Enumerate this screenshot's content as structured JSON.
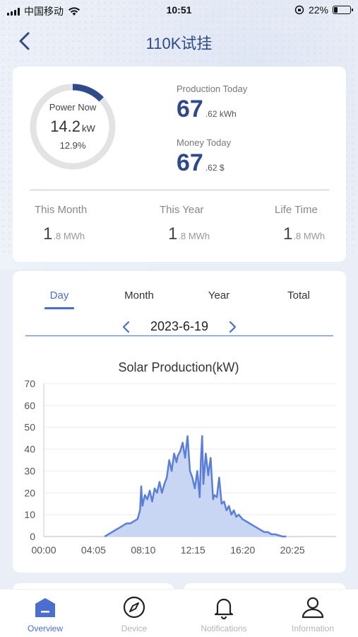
{
  "status_bar": {
    "carrier": "中国移动",
    "time": "10:51",
    "battery_pct": "22%",
    "battery_level": 0.22
  },
  "nav": {
    "title": "110K试挂"
  },
  "summary": {
    "power_now_label": "Power Now",
    "power_now_value": "14.2",
    "power_now_unit": "kW",
    "power_now_pct": "12.9%",
    "power_ring_fraction": 0.129,
    "production_today_label": "Production Today",
    "production_today_int": "67",
    "production_today_dec": ".62 kWh",
    "money_today_label": "Money Today",
    "money_today_int": "67",
    "money_today_dec": ".62 $",
    "this_month_label": "This Month",
    "this_month_int": "1",
    "this_month_dec": ".8 MWh",
    "this_year_label": "This Year",
    "this_year_int": "1",
    "this_year_dec": ".8 MWh",
    "life_time_label": "Life Time",
    "life_time_int": "1",
    "life_time_dec": ".8 MWh"
  },
  "tabs": [
    {
      "label": "Day",
      "active": true
    },
    {
      "label": "Month",
      "active": false
    },
    {
      "label": "Year",
      "active": false
    },
    {
      "label": "Total",
      "active": false
    }
  ],
  "date": "2023-6-19",
  "colors": {
    "accent": "#4a6fd0",
    "title": "#2f4a8a",
    "ring_track": "#e3e3e3",
    "ring_fill": "#2f4a8a",
    "series_line": "#5b7fd8",
    "series_fill": "#c9d6f3"
  },
  "chart_data": {
    "type": "area",
    "title": "Solar Production(kW)",
    "xlabel": "",
    "ylabel": "",
    "ylim": [
      0,
      70
    ],
    "yticks": [
      0,
      10,
      20,
      30,
      40,
      50,
      60,
      70
    ],
    "xticks": [
      "00:00",
      "04:05",
      "08:10",
      "12:15",
      "16:20",
      "20:25"
    ],
    "x_range_hours": [
      0,
      24
    ],
    "grid": true,
    "legend": "none",
    "x": [
      5.0,
      5.3,
      5.6,
      5.9,
      6.2,
      6.5,
      6.8,
      7.1,
      7.4,
      7.7,
      7.9,
      8.0,
      8.1,
      8.3,
      8.5,
      8.7,
      8.9,
      9.1,
      9.3,
      9.5,
      9.7,
      9.9,
      10.1,
      10.3,
      10.5,
      10.7,
      10.9,
      11.0,
      11.2,
      11.4,
      11.6,
      11.8,
      12.0,
      12.2,
      12.4,
      12.6,
      12.8,
      12.9,
      13.0,
      13.1,
      13.3,
      13.5,
      13.7,
      13.9,
      14.0,
      14.2,
      14.4,
      14.6,
      14.8,
      15.0,
      15.2,
      15.4,
      15.6,
      15.8,
      16.0,
      16.3,
      16.6,
      16.9,
      17.2,
      17.5,
      17.8,
      18.1,
      18.4,
      18.7,
      19.0,
      19.3,
      19.6,
      19.9
    ],
    "values": [
      0,
      1,
      2,
      3,
      4,
      5,
      6,
      6,
      7,
      8,
      12,
      23,
      14,
      19,
      17,
      21,
      16,
      22,
      20,
      25,
      20,
      24,
      27,
      35,
      30,
      38,
      34,
      37,
      39,
      43,
      36,
      46,
      30,
      27,
      22,
      30,
      18,
      35,
      46,
      24,
      38,
      28,
      36,
      17,
      19,
      18,
      27,
      15,
      16,
      12,
      14,
      10,
      12,
      9,
      10,
      8,
      7,
      6,
      5,
      4,
      3,
      2,
      2,
      1,
      1,
      0.5,
      0,
      0
    ]
  },
  "tabbar": [
    {
      "label": "Overview",
      "icon": "overview-icon",
      "active": true
    },
    {
      "label": "Device",
      "icon": "compass-icon",
      "active": false
    },
    {
      "label": "Notifications",
      "icon": "bell-icon",
      "active": false
    },
    {
      "label": "Information",
      "icon": "person-icon",
      "active": false
    }
  ]
}
